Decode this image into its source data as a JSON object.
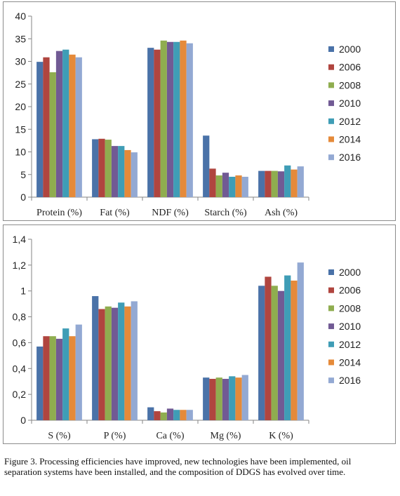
{
  "colors": [
    "#4a72a8",
    "#b0453f",
    "#8fad4f",
    "#715a94",
    "#3f9db6",
    "#e58a3a",
    "#93a9d3"
  ],
  "chart_data": [
    {
      "type": "bar",
      "categories": [
        "Protein (%)",
        "Fat (%)",
        "NDF (%)",
        "Starch (%)",
        "Ash (%)"
      ],
      "ylim": [
        0,
        40
      ],
      "yticks": [
        0,
        5,
        10,
        15,
        20,
        25,
        30,
        35,
        40
      ],
      "ytick_labels": [
        "0",
        "5",
        "10",
        "15",
        "20",
        "25",
        "30",
        "35",
        "40"
      ],
      "grid": false,
      "legend_position": "right",
      "series": [
        {
          "name": "2000",
          "values": [
            29.9,
            12.8,
            33.0,
            13.6,
            5.8
          ]
        },
        {
          "name": "2006",
          "values": [
            30.9,
            12.9,
            32.6,
            6.3,
            5.8
          ]
        },
        {
          "name": "2008",
          "values": [
            27.6,
            12.7,
            34.6,
            4.8,
            5.8
          ]
        },
        {
          "name": "2010",
          "values": [
            32.3,
            11.3,
            34.3,
            5.4,
            5.7
          ]
        },
        {
          "name": "2012",
          "values": [
            32.6,
            11.3,
            34.3,
            4.5,
            7.0
          ]
        },
        {
          "name": "2014",
          "values": [
            31.5,
            10.4,
            34.6,
            4.8,
            6.1
          ]
        },
        {
          "name": "2016",
          "values": [
            30.9,
            9.9,
            34.0,
            4.5,
            6.8
          ]
        }
      ]
    },
    {
      "type": "bar",
      "categories": [
        "S (%)",
        "P (%)",
        "Ca (%)",
        "Mg (%)",
        "K (%)"
      ],
      "ylim": [
        0,
        1.4
      ],
      "yticks": [
        0,
        0.2,
        0.4,
        0.6,
        0.8,
        1.0,
        1.2,
        1.4
      ],
      "ytick_labels": [
        "0",
        "0,2",
        "0,4",
        "0,6",
        "0,8",
        "1",
        "1,2",
        "1,4"
      ],
      "grid": false,
      "legend_position": "right",
      "series": [
        {
          "name": "2000",
          "values": [
            0.57,
            0.96,
            0.1,
            0.33,
            1.04
          ]
        },
        {
          "name": "2006",
          "values": [
            0.65,
            0.86,
            0.07,
            0.32,
            1.11
          ]
        },
        {
          "name": "2008",
          "values": [
            0.65,
            0.88,
            0.06,
            0.33,
            1.04
          ]
        },
        {
          "name": "2010",
          "values": [
            0.63,
            0.87,
            0.09,
            0.32,
            1.0
          ]
        },
        {
          "name": "2012",
          "values": [
            0.71,
            0.91,
            0.08,
            0.34,
            1.12
          ]
        },
        {
          "name": "2014",
          "values": [
            0.65,
            0.88,
            0.08,
            0.33,
            1.08
          ]
        },
        {
          "name": "2016",
          "values": [
            0.74,
            0.92,
            0.08,
            0.35,
            1.22
          ]
        }
      ]
    }
  ],
  "caption": "Figure 3.  Processing efficiencies have improved, new technologies have been implemented, oil separation systems have been installed, and the composition of DDGS has evolved over time."
}
